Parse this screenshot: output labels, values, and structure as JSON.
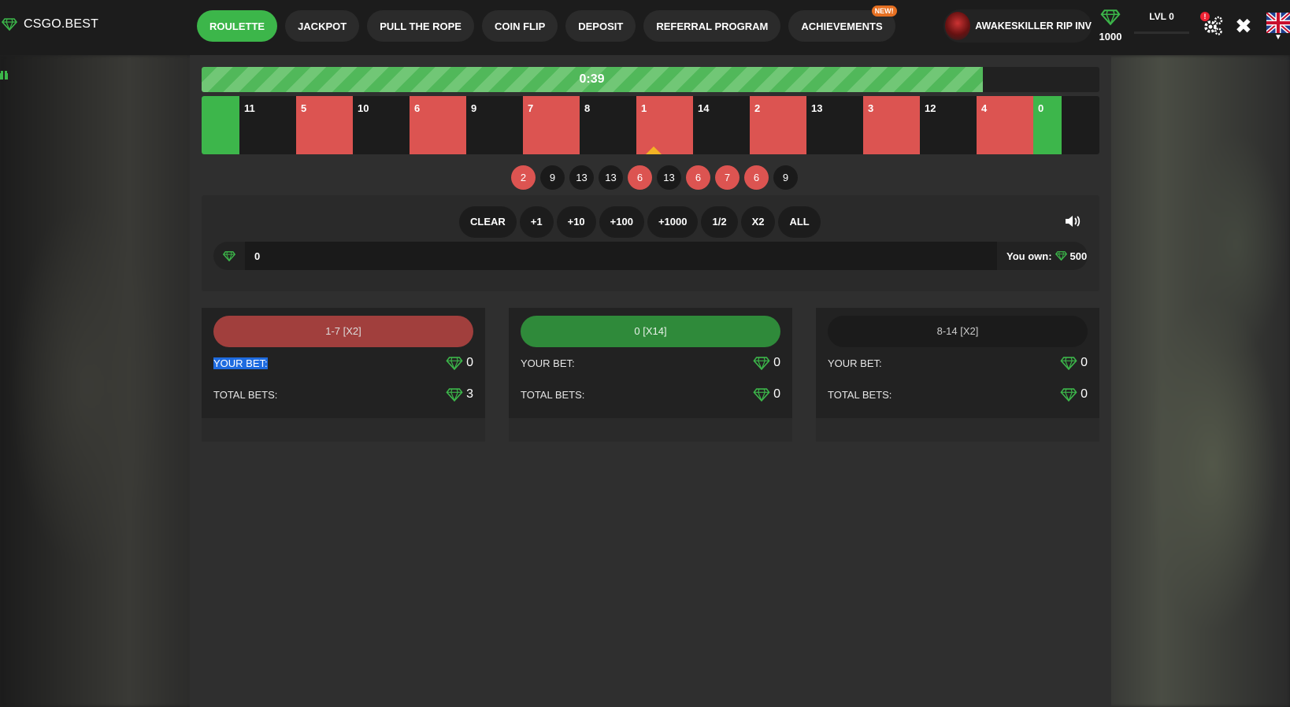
{
  "brand": "CSGO.BEST",
  "nav": [
    {
      "label": "ROULETTE",
      "active": true
    },
    {
      "label": "JACKPOT"
    },
    {
      "label": "PULL THE ROPE"
    },
    {
      "label": "COIN FLIP"
    },
    {
      "label": "DEPOSIT"
    },
    {
      "label": "REFERRAL PROGRAM"
    },
    {
      "label": "ACHIEVEMENTS",
      "badge": "NEW!"
    }
  ],
  "user": {
    "name": "AWAKESKILLER RIP INV",
    "balance": "1000",
    "level": "LVL 0",
    "notifications": "!"
  },
  "colors": {
    "green": "#3db64b",
    "red": "#dc5451",
    "black": "#1c1c1c",
    "accent_gem": "#3cb64a"
  },
  "round": {
    "timer": "0:39",
    "progress": 0.87
  },
  "wheel": [
    {
      "n": "",
      "c": "green"
    },
    {
      "n": "11",
      "c": "black"
    },
    {
      "n": "5",
      "c": "red"
    },
    {
      "n": "10",
      "c": "black"
    },
    {
      "n": "6",
      "c": "red"
    },
    {
      "n": "9",
      "c": "black"
    },
    {
      "n": "7",
      "c": "red"
    },
    {
      "n": "8",
      "c": "black"
    },
    {
      "n": "1",
      "c": "red"
    },
    {
      "n": "14",
      "c": "black"
    },
    {
      "n": "2",
      "c": "red"
    },
    {
      "n": "13",
      "c": "black"
    },
    {
      "n": "3",
      "c": "red"
    },
    {
      "n": "12",
      "c": "black"
    },
    {
      "n": "4",
      "c": "red"
    },
    {
      "n": "0",
      "c": "green"
    }
  ],
  "history": [
    {
      "n": "2",
      "c": "red"
    },
    {
      "n": "9",
      "c": "black"
    },
    {
      "n": "13",
      "c": "black"
    },
    {
      "n": "13",
      "c": "black"
    },
    {
      "n": "6",
      "c": "red"
    },
    {
      "n": "13",
      "c": "black"
    },
    {
      "n": "6",
      "c": "red"
    },
    {
      "n": "7",
      "c": "red"
    },
    {
      "n": "6",
      "c": "red"
    },
    {
      "n": "9",
      "c": "black"
    }
  ],
  "chips": [
    "CLEAR",
    "+1",
    "+10",
    "+100",
    "+1000",
    "1/2",
    "X2",
    "ALL"
  ],
  "bet_input": {
    "value": "0",
    "own_label": "You own:",
    "own_value": "500"
  },
  "bets": [
    {
      "label": "1-7 [X2]",
      "color": "red",
      "your_bet_label": "YOUR BET:",
      "your_bet": "0",
      "total_label": "TOTAL BETS:",
      "total": "3"
    },
    {
      "label": "0 [X14]",
      "color": "green",
      "your_bet_label": "YOUR BET:",
      "your_bet": "0",
      "total_label": "TOTAL BETS:",
      "total": "0"
    },
    {
      "label": "8-14 [X2]",
      "color": "black",
      "your_bet_label": "YOUR BET:",
      "your_bet": "0",
      "total_label": "TOTAL BETS:",
      "total": "0"
    }
  ],
  "icons": {
    "gem": "gem-icon",
    "settings": "gears-icon",
    "close": "close-icon",
    "sound": "speaker-icon",
    "flag": "uk-flag-icon",
    "gift": "gift-icon"
  }
}
